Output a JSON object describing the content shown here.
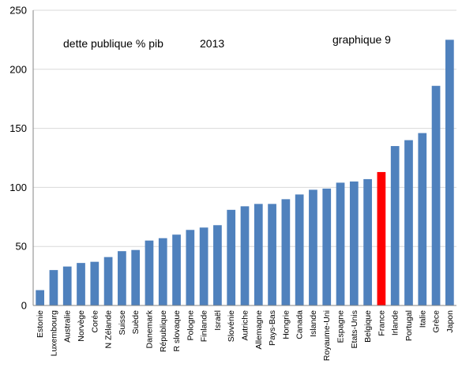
{
  "chart_data": {
    "type": "bar",
    "annotations": {
      "left": "dette publique  % pib",
      "year": "2013",
      "right": "graphique 9"
    },
    "ylim": [
      0,
      250
    ],
    "yticks": [
      0,
      50,
      100,
      150,
      200,
      250
    ],
    "grid": true,
    "legend": "none",
    "colors": {
      "bar": "#4f81bd",
      "highlight": "#ff0000",
      "grid": "#d9d9d9",
      "axis": "#868686"
    },
    "highlight_category": "France",
    "categories": [
      "Estonie",
      "Luxembourg",
      "Australie",
      "Norvège",
      "Corée",
      "N Zélande",
      "Suisse",
      "Suède",
      "Danemark",
      "République",
      "R slovaque",
      "Pologne",
      "Finlande",
      "Israël",
      "Slovénie",
      "Autriche",
      "Allemagne",
      "Pays-Bas",
      "Hongrie",
      "Canada",
      "Islande",
      "Royaume-Uni",
      "Espagne",
      "Etats-Unis",
      "Belgique",
      "France",
      "Irlande",
      "Portugal",
      "Italie",
      "Grèce",
      "Japon"
    ],
    "values": [
      13,
      30,
      33,
      36,
      37,
      41,
      46,
      47,
      55,
      57,
      60,
      64,
      66,
      68,
      81,
      84,
      86,
      86,
      90,
      94,
      98,
      99,
      104,
      105,
      107,
      113,
      135,
      140,
      146,
      186,
      225
    ]
  }
}
